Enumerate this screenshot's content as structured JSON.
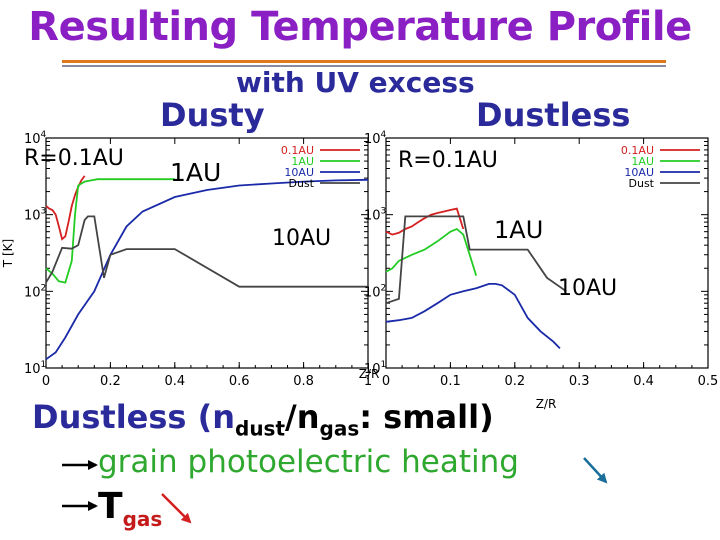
{
  "slide": {
    "title": "Resulting Temperature Profile",
    "subtitle": "with UV excess",
    "panel_labels": {
      "left": "Dusty",
      "right": "Dustless"
    },
    "annotations": {
      "left": [
        "R=0.1AU",
        "1AU",
        "10AU"
      ],
      "right": [
        "R=0.1AU",
        "1AU",
        "10AU"
      ]
    },
    "footer": {
      "line1_prefix": "Dustless (n",
      "line1_sub1": "dust",
      "line1_mid": "/n",
      "line1_sub2": "gas",
      "line1_suffix": ": small)",
      "line2": "grain photoelectric heating",
      "line3_main": "T",
      "line3_sub": "gas"
    }
  },
  "colors": {
    "title": "#8a1fc4",
    "heading": "#2a2a9a",
    "accent_rule": "#e07820",
    "series_01": "#d42020",
    "series_1": "#22cc22",
    "series_10": "#1a2aa8",
    "series_dust": "#444444",
    "arrow_down": "#d42020",
    "arrow_green": "#1a6e9a"
  },
  "chart_data": [
    {
      "type": "line",
      "panel": "Dusty",
      "xlabel": "Z/R",
      "ylabel": "T [K]",
      "xlim": [
        0,
        1
      ],
      "ylim": [
        10,
        10000
      ],
      "yscale": "log",
      "xticks": [
        "0",
        "0.2",
        "0.4",
        "0.6",
        "0.8",
        "1"
      ],
      "yticks": [
        "10^1",
        "10^2",
        "10^3",
        "10^4"
      ],
      "legend_position": "top-right",
      "series": [
        {
          "name": "0.1AU",
          "color": "#d42020",
          "x": [
            0.0,
            0.01,
            0.02,
            0.03,
            0.04,
            0.05,
            0.06,
            0.07,
            0.08,
            0.09,
            0.1,
            0.11,
            0.12
          ],
          "y": [
            1300,
            1200,
            1150,
            1000,
            700,
            480,
            520,
            800,
            1300,
            1800,
            2300,
            2800,
            3200
          ]
        },
        {
          "name": "1AU",
          "color": "#22cc22",
          "x": [
            0.0,
            0.02,
            0.04,
            0.06,
            0.08,
            0.09,
            0.1,
            0.12,
            0.14,
            0.16,
            0.18,
            0.2,
            0.25,
            0.3,
            0.35,
            0.4
          ],
          "y": [
            200,
            170,
            135,
            130,
            250,
            1000,
            2400,
            2700,
            2800,
            2900,
            2900,
            2900,
            2900,
            2900,
            2900,
            2900
          ]
        },
        {
          "name": "10AU",
          "color": "#1a2aa8",
          "x": [
            0.0,
            0.03,
            0.06,
            0.1,
            0.15,
            0.2,
            0.25,
            0.3,
            0.4,
            0.5,
            0.6,
            0.7,
            0.8,
            0.9,
            1.0
          ],
          "y": [
            13,
            16,
            25,
            50,
            100,
            300,
            700,
            1100,
            1700,
            2100,
            2400,
            2550,
            2700,
            2800,
            2850
          ]
        },
        {
          "name": "Dust",
          "color": "#444444",
          "x": [
            0.0,
            0.02,
            0.05,
            0.08,
            0.1,
            0.12,
            0.13,
            0.15,
            0.18,
            0.2,
            0.25,
            0.3,
            0.35,
            0.4,
            0.6,
            0.8,
            1.0
          ],
          "y": [
            130,
            180,
            370,
            360,
            400,
            850,
            950,
            950,
            150,
            300,
            355,
            355,
            355,
            355,
            115,
            115,
            115
          ]
        }
      ]
    },
    {
      "type": "line",
      "panel": "Dustless",
      "xlabel": "Z/R",
      "ylabel": "",
      "xlim": [
        0,
        0.5
      ],
      "ylim": [
        10,
        10000
      ],
      "yscale": "log",
      "xticks": [
        "0",
        "0.1",
        "0.2",
        "0.3",
        "0.4",
        "0.5"
      ],
      "yticks": [
        "10^1",
        "10^2",
        "10^3",
        "10^4"
      ],
      "legend_position": "top-right",
      "series": [
        {
          "name": "0.1AU",
          "color": "#d42020",
          "x": [
            0.0,
            0.01,
            0.02,
            0.03,
            0.04,
            0.05,
            0.06,
            0.07,
            0.08,
            0.09,
            0.1,
            0.11,
            0.12
          ],
          "y": [
            600,
            550,
            580,
            650,
            700,
            800,
            900,
            1000,
            1050,
            1100,
            1150,
            1200,
            650
          ]
        },
        {
          "name": "1AU",
          "color": "#22cc22",
          "x": [
            0.0,
            0.01,
            0.02,
            0.04,
            0.06,
            0.08,
            0.1,
            0.11,
            0.12,
            0.13,
            0.14
          ],
          "y": [
            180,
            200,
            250,
            300,
            350,
            450,
            600,
            650,
            550,
            300,
            160
          ]
        },
        {
          "name": "10AU",
          "color": "#1a2aa8",
          "x": [
            0.0,
            0.02,
            0.04,
            0.06,
            0.08,
            0.1,
            0.12,
            0.14,
            0.16,
            0.17,
            0.18,
            0.2,
            0.22,
            0.24,
            0.26,
            0.27
          ],
          "y": [
            40,
            42,
            45,
            55,
            70,
            90,
            100,
            110,
            125,
            125,
            120,
            90,
            45,
            30,
            22,
            18
          ]
        },
        {
          "name": "Dust",
          "color": "#444444",
          "x": [
            0.0,
            0.02,
            0.03,
            0.05,
            0.08,
            0.1,
            0.12,
            0.13,
            0.15,
            0.18,
            0.2,
            0.22,
            0.25,
            0.28
          ],
          "y": [
            70,
            80,
            950,
            950,
            950,
            950,
            950,
            350,
            350,
            350,
            350,
            350,
            150,
            100
          ]
        }
      ]
    }
  ]
}
